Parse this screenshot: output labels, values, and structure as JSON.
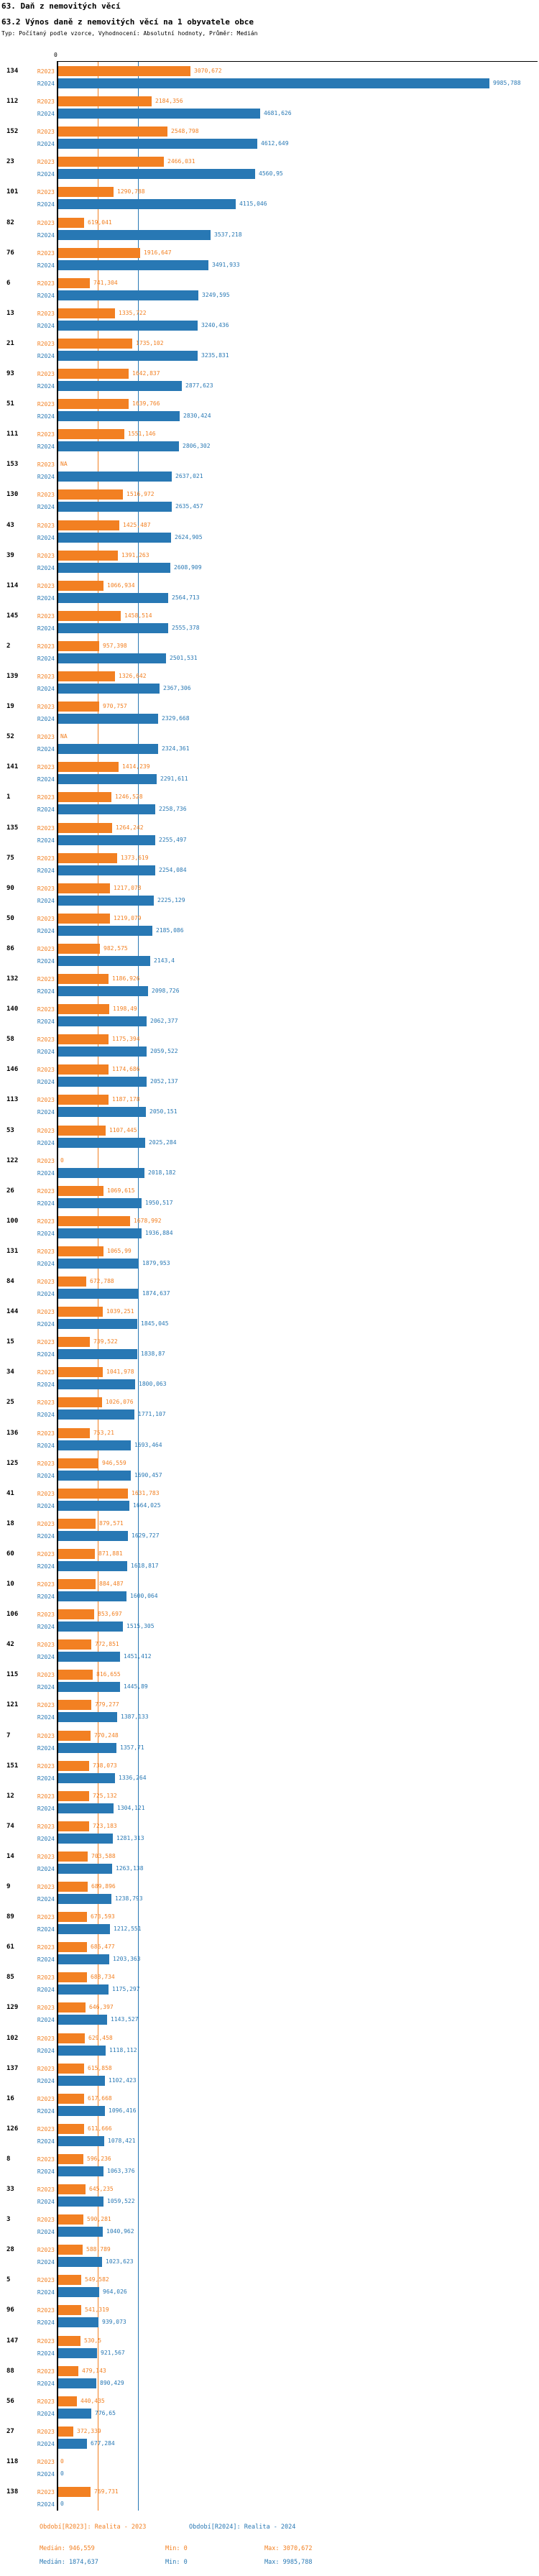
{
  "header": {
    "title": "63. Daň z nemovitých věcí",
    "subtitle": "63.2 Výnos daně z nemovitých věcí na 1 obyvatele obce",
    "meta": "Typ: Počítaný podle vzorce, Vyhodnocení: Absolutní hodnoty, Průměr: Medián"
  },
  "axis": {
    "zero_label": "0"
  },
  "colors": {
    "s2023": "#f28022",
    "s2024": "#2878b4",
    "axis": "#000000"
  },
  "footer": {
    "legend_2023": "Období[R2023]: Realita - 2023",
    "legend_2024": "Období[R2024]: Realita - 2024",
    "stats_2023": {
      "median_label": "Medián: 946,559",
      "min_label": "Min: 0",
      "max_label": "Max: 3070,672"
    },
    "stats_2024": {
      "median_label": "Medián: 1874,637",
      "min_label": "Min: 0",
      "max_label": "Max: 9985,788"
    }
  },
  "chart_data": {
    "type": "bar",
    "orientation": "horizontal",
    "series_names": [
      "R2023",
      "R2024"
    ],
    "legend_position": "bottom",
    "x_max": 9985.788,
    "median_2023": 946.559,
    "median_2024": 1874.637,
    "columns": [
      "row_id",
      "R2023",
      "R2024"
    ],
    "rows": [
      [
        "134",
        "3070,672",
        "9985,788"
      ],
      [
        "112",
        "2184,356",
        "4681,626"
      ],
      [
        "152",
        "2548,798",
        "4612,649"
      ],
      [
        "23",
        "2466,031",
        "4560,95"
      ],
      [
        "101",
        "1290,788",
        "4115,046"
      ],
      [
        "82",
        "619,041",
        "3537,218"
      ],
      [
        "76",
        "1916,647",
        "3491,933"
      ],
      [
        "6",
        "741,304",
        "3249,595"
      ],
      [
        "13",
        "1335,722",
        "3240,436"
      ],
      [
        "21",
        "1735,102",
        "3235,831"
      ],
      [
        "93",
        "1642,837",
        "2877,623"
      ],
      [
        "51",
        "1639,766",
        "2830,424"
      ],
      [
        "111",
        "1551,146",
        "2806,302"
      ],
      [
        "153",
        "NA",
        "2637,021"
      ],
      [
        "130",
        "1516,972",
        "2635,457"
      ],
      [
        "43",
        "1425,487",
        "2624,905"
      ],
      [
        "39",
        "1391,263",
        "2608,909"
      ],
      [
        "114",
        "1066,934",
        "2564,713"
      ],
      [
        "145",
        "1458,514",
        "2555,378"
      ],
      [
        "2",
        "957,398",
        "2501,531"
      ],
      [
        "139",
        "1326,642",
        "2367,306"
      ],
      [
        "19",
        "970,757",
        "2329,668"
      ],
      [
        "52",
        "NA",
        "2324,361"
      ],
      [
        "141",
        "1414,239",
        "2291,611"
      ],
      [
        "1",
        "1246,528",
        "2258,736"
      ],
      [
        "135",
        "1264,242",
        "2255,497"
      ],
      [
        "75",
        "1373,619",
        "2254,084"
      ],
      [
        "90",
        "1217,078",
        "2225,129"
      ],
      [
        "50",
        "1219,079",
        "2185,086"
      ],
      [
        "86",
        "982,575",
        "2143,4"
      ],
      [
        "132",
        "1186,926",
        "2098,726"
      ],
      [
        "140",
        "1198,49",
        "2062,377"
      ],
      [
        "58",
        "1175,394",
        "2059,522"
      ],
      [
        "146",
        "1174,686",
        "2052,137"
      ],
      [
        "113",
        "1187,178",
        "2050,151"
      ],
      [
        "53",
        "1107,445",
        "2025,284"
      ],
      [
        "122",
        "0",
        "2018,182"
      ],
      [
        "26",
        "1069,615",
        "1950,517"
      ],
      [
        "100",
        "1678,992",
        "1936,884"
      ],
      [
        "131",
        "1065,99",
        "1879,953"
      ],
      [
        "84",
        "672,788",
        "1874,637"
      ],
      [
        "144",
        "1039,251",
        "1845,045"
      ],
      [
        "15",
        "739,522",
        "1838,87"
      ],
      [
        "34",
        "1041,978",
        "1800,063"
      ],
      [
        "25",
        "1026,076",
        "1771,107"
      ],
      [
        "136",
        "753,21",
        "1693,464"
      ],
      [
        "125",
        "946,559",
        "1690,457"
      ],
      [
        "41",
        "1631,783",
        "1664,025"
      ],
      [
        "18",
        "879,571",
        "1629,727"
      ],
      [
        "60",
        "871,881",
        "1618,817"
      ],
      [
        "10",
        "884,487",
        "1600,064"
      ],
      [
        "106",
        "853,697",
        "1515,305"
      ],
      [
        "42",
        "772,851",
        "1451,412"
      ],
      [
        "115",
        "816,655",
        "1445,89"
      ],
      [
        "121",
        "779,277",
        "1387,133"
      ],
      [
        "7",
        "770,248",
        "1357,71"
      ],
      [
        "151",
        "738,073",
        "1336,264"
      ],
      [
        "12",
        "725,132",
        "1304,121"
      ],
      [
        "74",
        "723,183",
        "1281,313"
      ],
      [
        "14",
        "703,588",
        "1263,138"
      ],
      [
        "9",
        "689,896",
        "1238,793"
      ],
      [
        "89",
        "673,593",
        "1212,551"
      ],
      [
        "61",
        "686,477",
        "1203,363"
      ],
      [
        "85",
        "688,734",
        "1175,297"
      ],
      [
        "129",
        "646,397",
        "1143,527"
      ],
      [
        "102",
        "629,458",
        "1118,112"
      ],
      [
        "137",
        "615,858",
        "1102,423"
      ],
      [
        "16",
        "617,668",
        "1096,416"
      ],
      [
        "126",
        "611,666",
        "1078,421"
      ],
      [
        "8",
        "596,236",
        "1063,376"
      ],
      [
        "33",
        "645,235",
        "1059,522"
      ],
      [
        "3",
        "590,281",
        "1040,962"
      ],
      [
        "28",
        "588,789",
        "1023,623"
      ],
      [
        "5",
        "549,582",
        "964,026"
      ],
      [
        "96",
        "541,319",
        "939,073"
      ],
      [
        "147",
        "530,5",
        "921,567"
      ],
      [
        "88",
        "479,143",
        "890,429"
      ],
      [
        "56",
        "440,435",
        "776,65"
      ],
      [
        "27",
        "372,339",
        "677,284"
      ],
      [
        "118",
        "0",
        "0"
      ],
      [
        "138",
        "769,731",
        "0"
      ]
    ]
  }
}
